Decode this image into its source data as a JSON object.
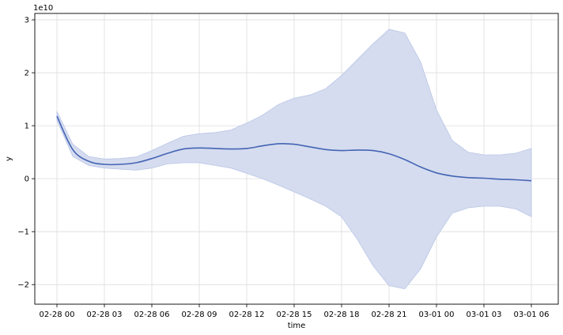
{
  "chart_data": {
    "type": "line",
    "title": "",
    "xlabel": "time",
    "ylabel": "y",
    "y_scale_label": "1e10",
    "grid": true,
    "legend": "none",
    "colors": {
      "line": "#4464b4",
      "band": "#d5dcef",
      "band_edge": "#b8c5e6"
    },
    "x_ticks": [
      {
        "value": 0,
        "label": "02-28 00"
      },
      {
        "value": 3,
        "label": "02-28 03"
      },
      {
        "value": 6,
        "label": "02-28 06"
      },
      {
        "value": 9,
        "label": "02-28 09"
      },
      {
        "value": 12,
        "label": "02-28 12"
      },
      {
        "value": 15,
        "label": "02-28 15"
      },
      {
        "value": 18,
        "label": "02-28 18"
      },
      {
        "value": 21,
        "label": "02-28 21"
      },
      {
        "value": 24,
        "label": "03-01 00"
      },
      {
        "value": 27,
        "label": "03-01 03"
      },
      {
        "value": 30,
        "label": "03-01 06"
      }
    ],
    "xlim": [
      -1.4,
      31.7
    ],
    "y_ticks": [
      {
        "value": -2,
        "label": "−2"
      },
      {
        "value": -1,
        "label": "−1"
      },
      {
        "value": 0,
        "label": "0"
      },
      {
        "value": 1,
        "label": "1"
      },
      {
        "value": 2,
        "label": "2"
      },
      {
        "value": 3,
        "label": "3"
      }
    ],
    "ylim": [
      -2.37,
      3.12
    ],
    "series": [
      {
        "x": [
          0,
          1,
          2,
          3,
          4,
          5,
          6,
          7,
          8,
          9,
          10,
          11,
          12,
          13,
          14,
          15,
          16,
          17,
          18,
          19,
          20,
          21,
          22,
          23,
          24,
          25,
          26,
          27,
          28,
          29,
          30
        ],
        "y": [
          1.18,
          0.55,
          0.33,
          0.27,
          0.27,
          0.3,
          0.38,
          0.48,
          0.56,
          0.58,
          0.57,
          0.56,
          0.57,
          0.62,
          0.66,
          0.65,
          0.6,
          0.55,
          0.53,
          0.54,
          0.53,
          0.47,
          0.36,
          0.22,
          0.11,
          0.05,
          0.02,
          0.01,
          -0.01,
          -0.02,
          -0.04
        ],
        "lower": [
          1.1,
          0.42,
          0.25,
          0.2,
          0.18,
          0.16,
          0.2,
          0.28,
          0.3,
          0.3,
          0.25,
          0.2,
          0.1,
          0.0,
          -0.12,
          -0.25,
          -0.38,
          -0.52,
          -0.72,
          -1.15,
          -1.65,
          -2.02,
          -2.08,
          -1.7,
          -1.1,
          -0.65,
          -0.55,
          -0.52,
          -0.52,
          -0.57,
          -0.72
        ],
        "upper": [
          1.27,
          0.65,
          0.42,
          0.37,
          0.38,
          0.41,
          0.53,
          0.67,
          0.8,
          0.85,
          0.87,
          0.92,
          1.05,
          1.2,
          1.4,
          1.52,
          1.58,
          1.7,
          1.95,
          2.25,
          2.55,
          2.82,
          2.75,
          2.2,
          1.3,
          0.72,
          0.5,
          0.45,
          0.45,
          0.48,
          0.57
        ]
      }
    ]
  }
}
